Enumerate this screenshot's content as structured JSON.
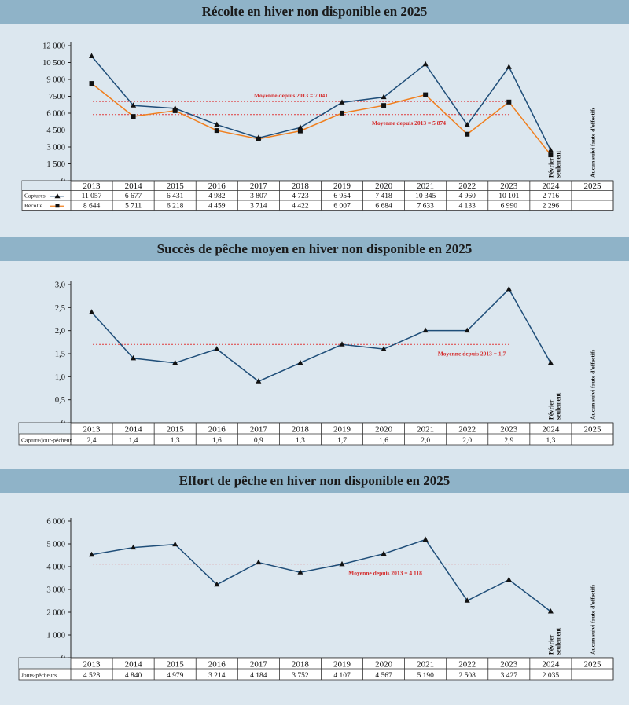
{
  "chart_data": [
    {
      "type": "line",
      "title": "Récolte en hiver non disponible en 2025",
      "categories": [
        "2013",
        "2014",
        "2015",
        "2016",
        "2017",
        "2018",
        "2019",
        "2020",
        "2021",
        "2022",
        "2023",
        "2024",
        "2025"
      ],
      "ylim": [
        0,
        12000
      ],
      "yticks": [
        0,
        1500,
        3000,
        4500,
        6000,
        7500,
        9000,
        10500,
        12000
      ],
      "ytick_labels": [
        "0",
        "1 500",
        "3 000",
        "4 500",
        "6 000",
        "7500",
        "9 000",
        "10 500",
        "12 000"
      ],
      "series": [
        {
          "name": "Captures",
          "color": "#1f4e79",
          "marker": "triangle",
          "values": [
            11057,
            6677,
            6431,
            4982,
            3807,
            4723,
            6954,
            7418,
            10345,
            4960,
            10101,
            2716,
            null
          ],
          "labels": [
            "11 057",
            "6 677",
            "6 431",
            "4 982",
            "3 807",
            "4 723",
            "6 954",
            "7 418",
            "10 345",
            "4 960",
            "10 101",
            "2 716",
            ""
          ]
        },
        {
          "name": "Récolte",
          "color": "#f07f1e",
          "marker": "square",
          "values": [
            8644,
            5711,
            6218,
            4459,
            3714,
            4422,
            6007,
            6684,
            7633,
            4133,
            6990,
            2296,
            null
          ],
          "labels": [
            "8 644",
            "5 711",
            "6 218",
            "4 459",
            "3 714",
            "4 422",
            "6 007",
            "6 684",
            "7 633",
            "4 133",
            "6 990",
            "2 296",
            ""
          ]
        }
      ],
      "reference_lines": [
        {
          "value": 7041,
          "label": "Moyenne depuis 2013 = 7 041"
        },
        {
          "value": 5874,
          "label": "Moyenne depuis 2013 = 5 874"
        }
      ],
      "annotations": [
        "Février seulement",
        "Aucun suivi faute d'effectifs"
      ]
    },
    {
      "type": "line",
      "title": "Succès de pêche moyen en hiver non disponible en 2025",
      "categories": [
        "2013",
        "2014",
        "2015",
        "2016",
        "2017",
        "2018",
        "2019",
        "2020",
        "2021",
        "2022",
        "2023",
        "2024",
        "2025"
      ],
      "ylim": [
        0,
        3.0
      ],
      "yticks": [
        0,
        0.5,
        1.0,
        1.5,
        2.0,
        2.5,
        3.0
      ],
      "ytick_labels": [
        "0",
        "0,5",
        "1,0",
        "1,5",
        "2,0",
        "2,5",
        "3,0"
      ],
      "series": [
        {
          "name": "Capture/jour-pêcheur",
          "color": "#1f4e79",
          "marker": "triangle",
          "values": [
            2.4,
            1.4,
            1.3,
            1.6,
            0.9,
            1.3,
            1.7,
            1.6,
            2.0,
            2.0,
            2.9,
            1.3,
            null
          ],
          "labels": [
            "2,4",
            "1,4",
            "1,3",
            "1,6",
            "0,9",
            "1,3",
            "1,7",
            "1,6",
            "2,0",
            "2,0",
            "2,9",
            "1,3",
            ""
          ]
        }
      ],
      "reference_lines": [
        {
          "value": 1.7,
          "label": "Moyenne depuis 2013 = 1,7"
        }
      ],
      "annotations": [
        "Février seulement",
        "Aucun suivi faute d'effectifs"
      ]
    },
    {
      "type": "line",
      "title": "Effort de pêche en hiver non disponible en 2025",
      "categories": [
        "2013",
        "2014",
        "2015",
        "2016",
        "2017",
        "2018",
        "2019",
        "2020",
        "2021",
        "2022",
        "2023",
        "2024",
        "2025"
      ],
      "ylim": [
        0,
        6000
      ],
      "yticks": [
        0,
        1000,
        2000,
        3000,
        4000,
        5000,
        6000
      ],
      "ytick_labels": [
        "0",
        "1 000",
        "2 000",
        "3 000",
        "4 000",
        "5 000",
        "6 000"
      ],
      "series": [
        {
          "name": "Jours-pêcheurs",
          "color": "#1f4e79",
          "marker": "triangle",
          "values": [
            4528,
            4840,
            4979,
            3214,
            4184,
            3752,
            4107,
            4567,
            5190,
            2508,
            3427,
            2035,
            null
          ],
          "labels": [
            "4 528",
            "4 840",
            "4 979",
            "3 214",
            "4 184",
            "3 752",
            "4 107",
            "4 567",
            "5 190",
            "2 508",
            "3 427",
            "2 035",
            ""
          ]
        }
      ],
      "reference_lines": [
        {
          "value": 4118,
          "label": "Moyenne depuis 2013 = 4 118"
        }
      ],
      "annotations": [
        "Février seulement",
        "Aucun suivi faute d'effectifs"
      ]
    }
  ]
}
